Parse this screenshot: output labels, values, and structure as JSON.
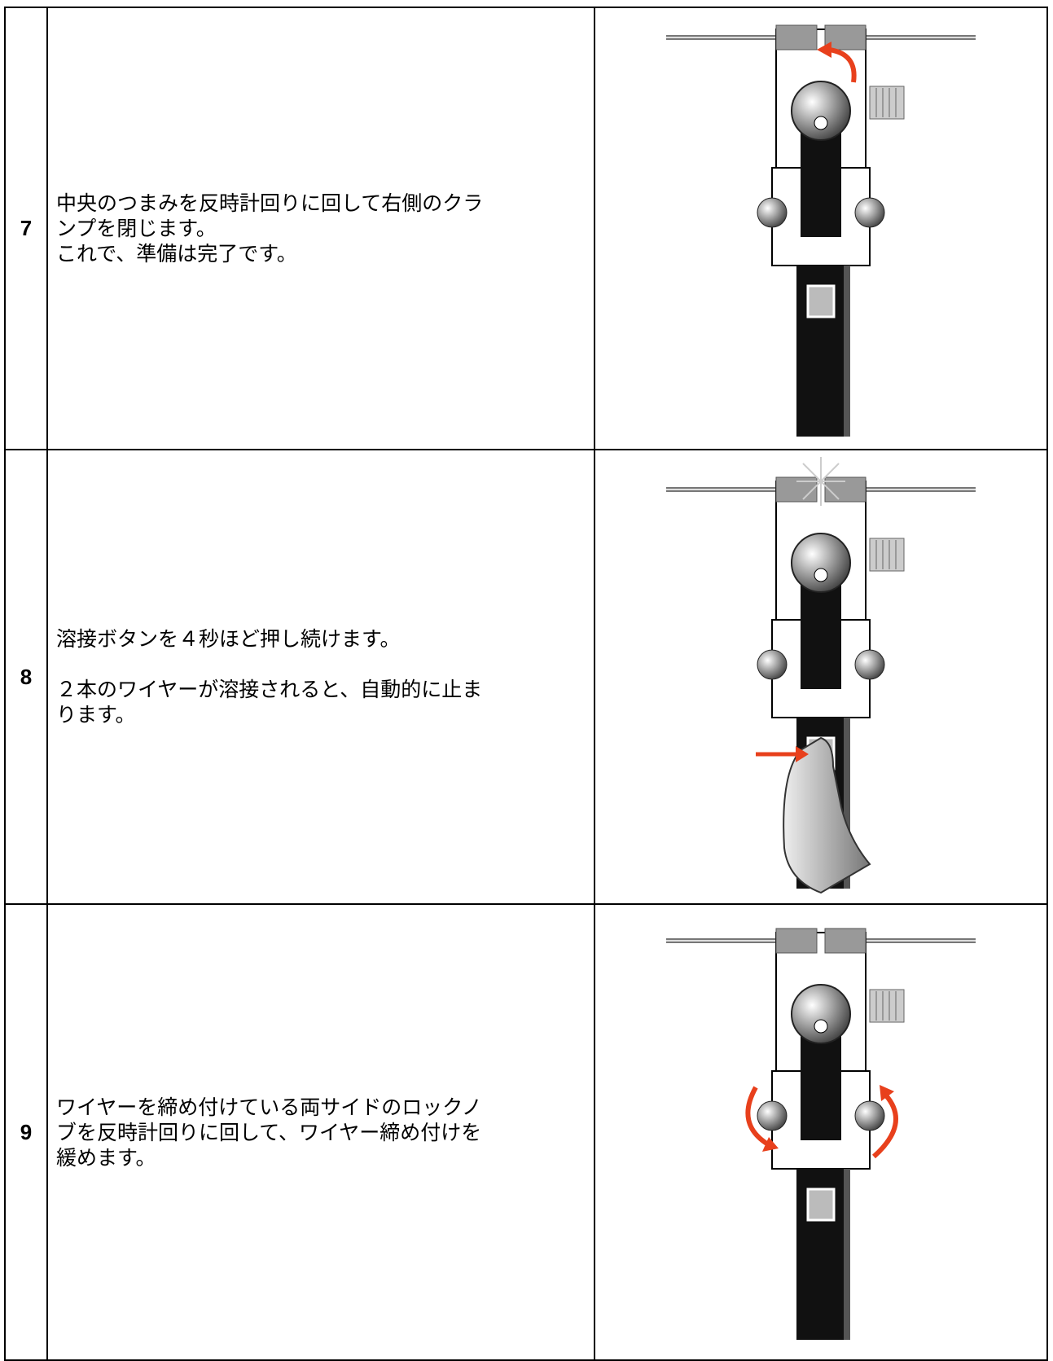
{
  "table": {
    "rows": [
      {
        "number": "7",
        "paragraphs": [
          [
            "中央のつまみを反時計回りに回して右側のクラ",
            "ンプを閉じます。",
            "これで、準備は完了です。"
          ]
        ]
      },
      {
        "number": "8",
        "paragraphs": [
          [
            "溶接ボタンを４秒ほど押し続けます。"
          ],
          [
            "２本のワイヤーが溶接されると、自動的に止ま",
            "ります。"
          ]
        ]
      },
      {
        "number": "9",
        "paragraphs": [
          [
            "ワイヤーを締め付けている両サイドのロックノ",
            "ブを反時計回りに回して、ワイヤー締め付けを",
            "緩めます。"
          ]
        ]
      }
    ]
  }
}
